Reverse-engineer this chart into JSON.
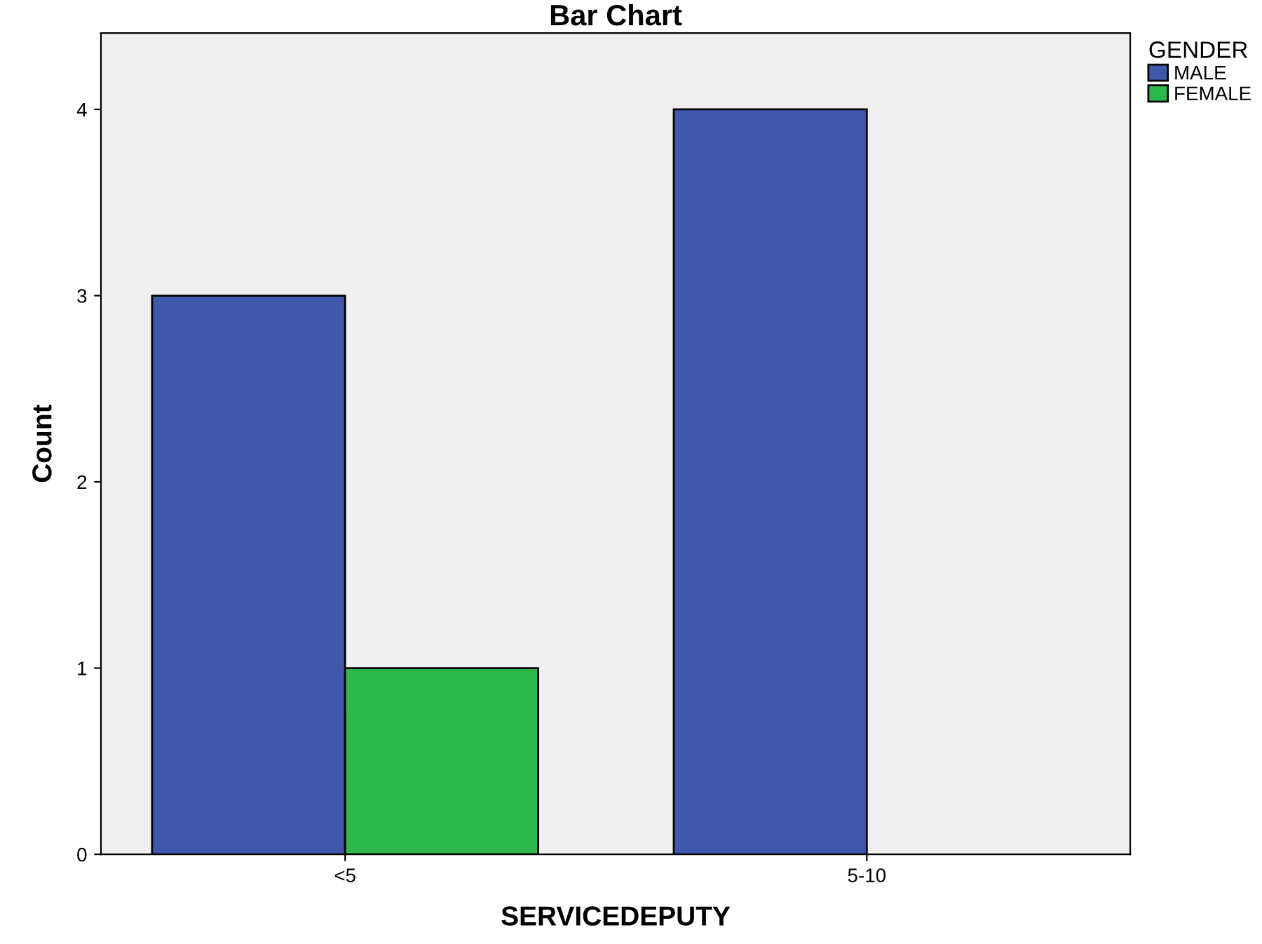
{
  "chart_data": {
    "type": "bar",
    "title": "Bar Chart",
    "xlabel": "SERVICEDEPUTY",
    "ylabel": "Count",
    "categories": [
      "<5",
      "5-10"
    ],
    "series": [
      {
        "name": "MALE",
        "color": "#3e58ac",
        "values": [
          3,
          4
        ]
      },
      {
        "name": "FEMALE",
        "color": "#2db84b",
        "values": [
          1,
          null
        ]
      }
    ],
    "legend_title": "GENDER",
    "legend": "right",
    "ylim": [
      0,
      4.41
    ],
    "yticks": [
      0,
      1,
      2,
      3,
      4
    ],
    "grid": false
  }
}
